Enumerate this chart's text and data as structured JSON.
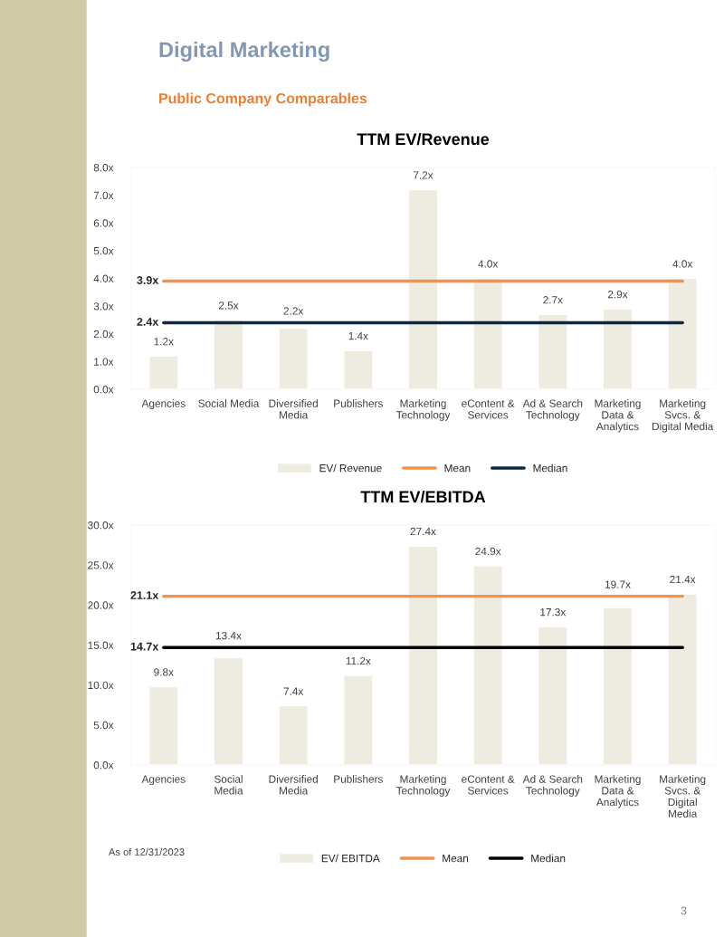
{
  "chart_data": [
    {
      "type": "bar",
      "title": "TTM EV/Revenue",
      "categories": [
        "Agencies",
        "Social Media",
        "Diversified Media",
        "Publishers",
        "Marketing Technology",
        "eContent & Services",
        "Ad & Search Technology",
        "Marketing Data & Analytics",
        "Marketing Svcs. & Digital Media"
      ],
      "series": [
        {
          "name": "EV/ Revenue",
          "color": "#eeece1",
          "values": [
            1.2,
            2.5,
            2.2,
            1.4,
            7.2,
            4.0,
            2.7,
            2.9,
            4.0
          ],
          "value_labels": [
            "1.2x",
            "2.5x",
            "2.2x",
            "1.4x",
            "7.2x",
            "4.0x",
            "2.7x",
            "2.9x",
            "4.0x"
          ]
        },
        {
          "name": "Mean",
          "type": "line",
          "color": "#f4914a",
          "values": [
            3.9,
            3.9,
            3.9,
            3.9,
            3.9,
            3.9,
            3.9,
            3.9,
            3.9
          ]
        },
        {
          "name": "Median",
          "type": "line",
          "color": "#0e2841",
          "values": [
            2.4,
            2.4,
            2.4,
            2.4,
            2.4,
            2.4,
            2.4,
            2.4,
            2.4
          ]
        }
      ],
      "ylim": [
        0,
        8
      ],
      "yticks": [
        {
          "value": 0,
          "label": "0.0x"
        },
        {
          "value": 1,
          "label": "1.0x"
        },
        {
          "value": 2,
          "label": "2.0x"
        },
        {
          "value": 3,
          "label": "3.0x"
        },
        {
          "value": 4,
          "label": "4.0x"
        },
        {
          "value": 5,
          "label": "5.0x"
        },
        {
          "value": 6,
          "label": "6.0x"
        },
        {
          "value": 7,
          "label": "7.0x"
        },
        {
          "value": 8,
          "label": "8.0x"
        }
      ],
      "legend": "bottom",
      "grid": false,
      "annotations": [
        "Digital Marketing",
        "Public Company Comparables",
        "3.9x",
        "2.4x"
      ]
    },
    {
      "type": "bar",
      "title": "TTM EV/EBITDA",
      "categories": [
        "Agencies",
        "Social Media",
        "Diversified Media",
        "Publishers",
        "Marketing Technology",
        "eContent & Services",
        "Ad & Search Technology",
        "Marketing Data & Analytics",
        "Marketing Svcs. & Digital Media"
      ],
      "series": [
        {
          "name": "EV/ EBITDA",
          "color": "#eeece1",
          "values": [
            9.8,
            13.4,
            7.4,
            11.2,
            27.4,
            24.9,
            17.3,
            19.7,
            21.4
          ],
          "value_labels": [
            "9.8x",
            "13.4x",
            "7.4x",
            "11.2x",
            "27.4x",
            "24.9x",
            "17.3x",
            "19.7x",
            "21.4x"
          ]
        },
        {
          "name": "Mean",
          "type": "line",
          "color": "#f4914a",
          "values": [
            21.1,
            21.1,
            21.1,
            21.1,
            21.1,
            21.1,
            21.1,
            21.1,
            21.1
          ]
        },
        {
          "name": "Median",
          "type": "line",
          "color": "#000000",
          "values": [
            14.7,
            14.7,
            14.7,
            14.7,
            14.7,
            14.7,
            14.7,
            14.7,
            14.7
          ]
        }
      ],
      "ylim": [
        0,
        30
      ],
      "yticks": [
        {
          "value": 0,
          "label": "0.0x"
        },
        {
          "value": 5,
          "label": "5.0x"
        },
        {
          "value": 10,
          "label": "10.0x"
        },
        {
          "value": 15,
          "label": "15.0x"
        },
        {
          "value": 20,
          "label": "20.0x"
        },
        {
          "value": 25,
          "label": "25.0x"
        },
        {
          "value": 30,
          "label": "30.0x"
        }
      ],
      "legend": "bottom",
      "grid": false,
      "annotations": [
        "As of 12/31/2023",
        "3",
        "21.1x",
        "14.7x"
      ]
    }
  ]
}
